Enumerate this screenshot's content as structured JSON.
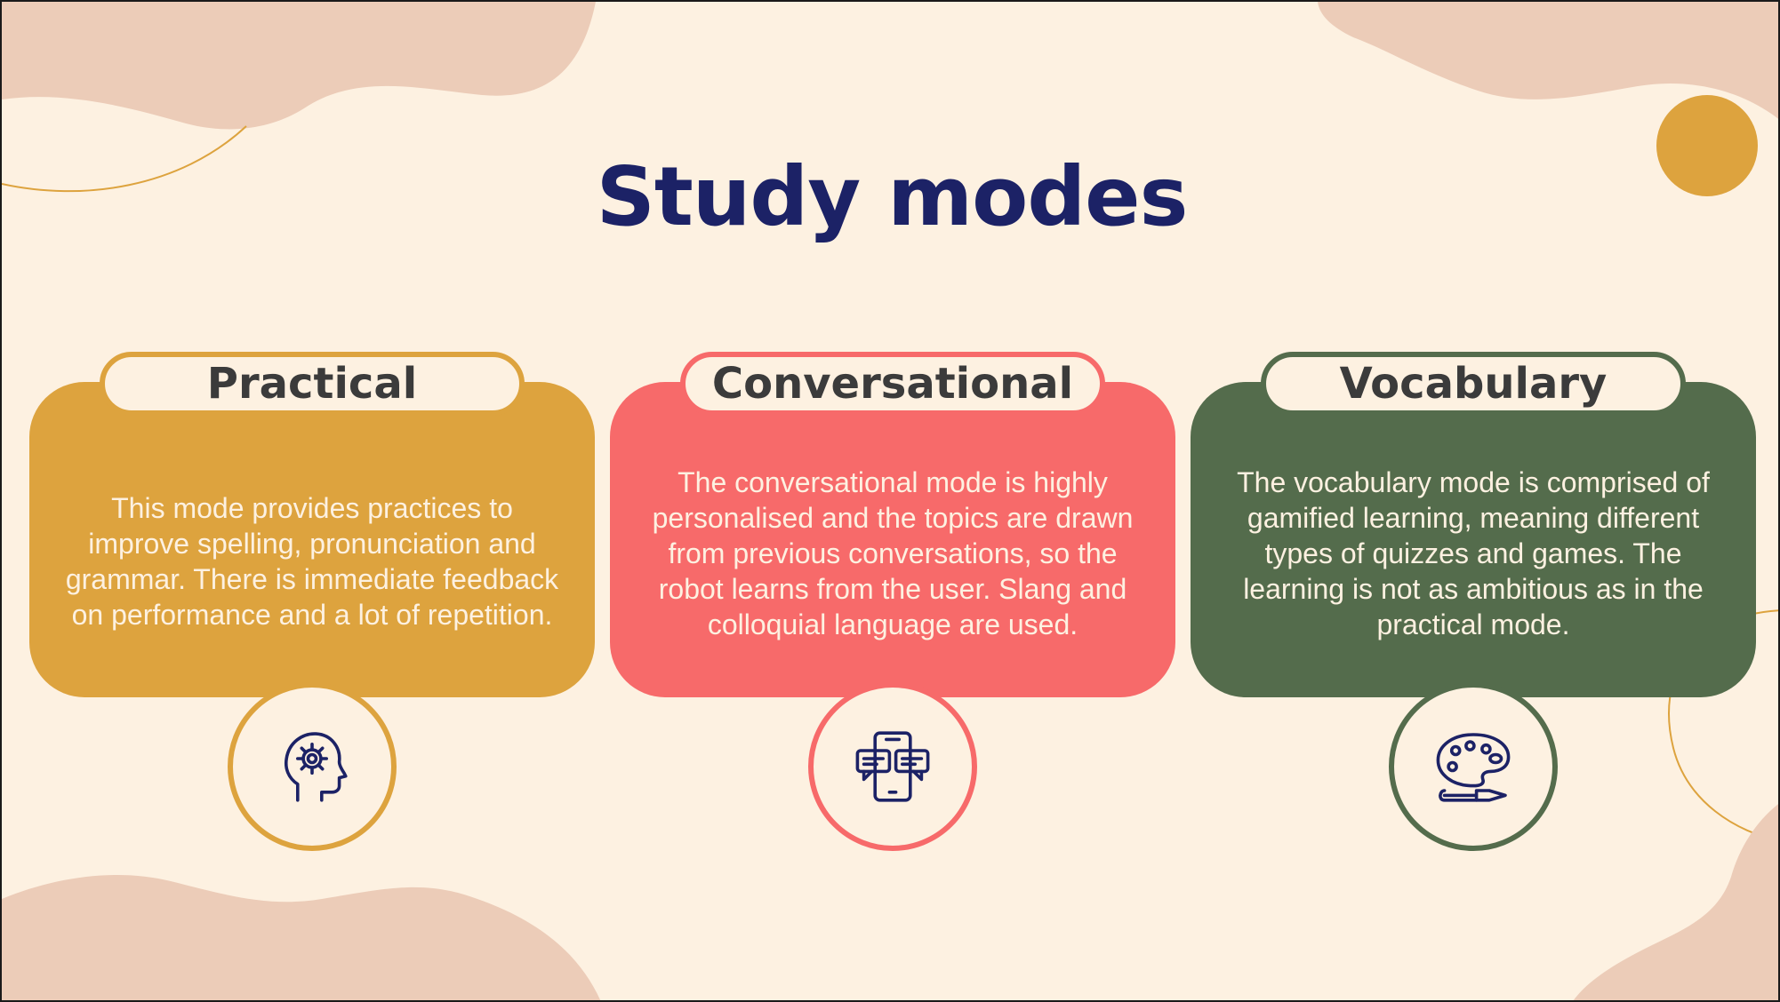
{
  "slide": {
    "title": "Study modes",
    "colors": {
      "background": "#fdf1e1",
      "title": "#1c2266",
      "blob": "#ecccb8",
      "accent_line": "#dda33e",
      "practical": "#dda33e",
      "conversational": "#f76a6a",
      "vocabulary": "#546c4c",
      "icon_stroke": "#1c2266"
    }
  },
  "modes": [
    {
      "label": "Practical",
      "description": "This mode provides practices to improve spelling, pronunciation and grammar. There is immediate feedback on performance and a lot of repetition.",
      "icon": "head-gear-icon"
    },
    {
      "label": "Conversational",
      "description": "The conversational mode is highly personalised and the topics are drawn from previous conversations, so the robot learns from the user. Slang and colloquial language are used.",
      "icon": "phone-chat-icon"
    },
    {
      "label": "Vocabulary",
      "description": "The vocabulary mode is comprised of gamified learning, meaning different types of quizzes and games. The learning is not as ambitious as in the practical mode.",
      "icon": "palette-brush-icon"
    }
  ]
}
